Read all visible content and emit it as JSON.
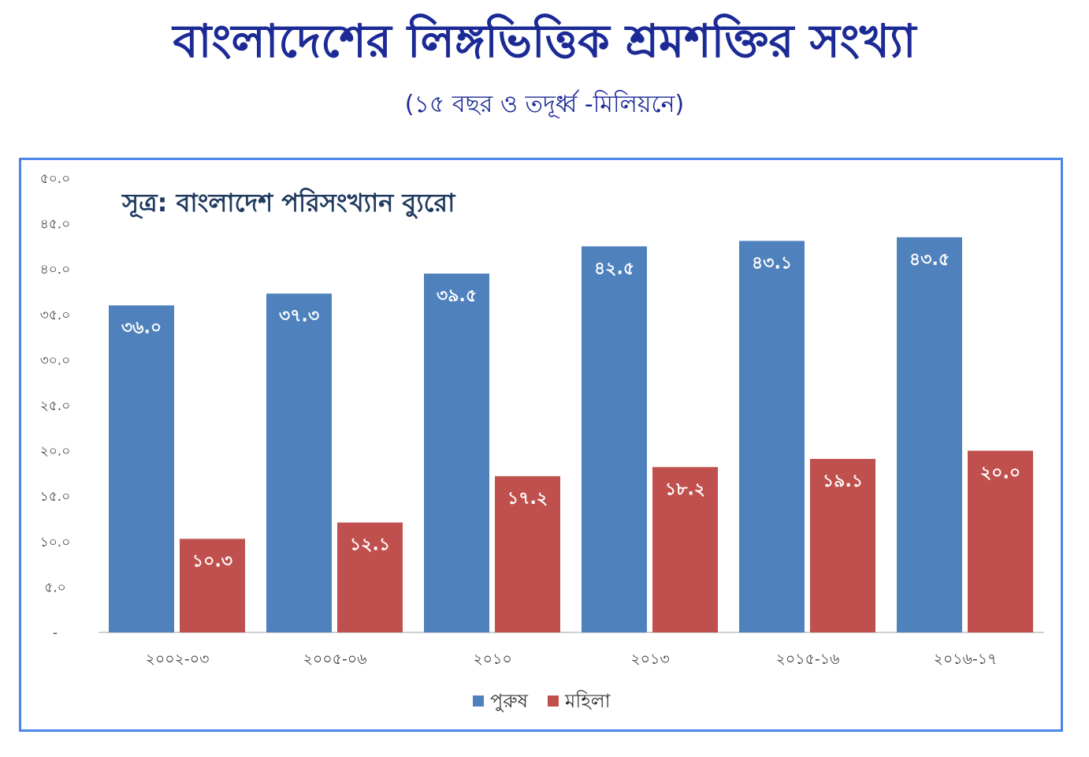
{
  "chart_data": {
    "type": "bar",
    "title": "বাংলাদেশের লিঙ্গভিত্তিক শ্রমশক্তির সংখ্যা",
    "subtitle": "(১৫ বছর ও তদূর্ধ্ব -মিলিয়নে)",
    "source": "সূত্র: বাংলাদেশ পরিসংখ্যান ব্যুরো",
    "categories": [
      "২০০২-০৩",
      "২০০৫-০৬",
      "২০১০",
      "২০১৩",
      "২০১৫-১৬",
      "২০১৬-১৭"
    ],
    "series": [
      {
        "name": "পুরুষ",
        "color": "#4f81bd",
        "values": [
          36.0,
          37.3,
          39.5,
          42.5,
          43.1,
          43.5
        ],
        "labels": [
          "৩৬.০",
          "৩৭.৩",
          "৩৯.৫",
          "৪২.৫",
          "৪৩.১",
          "৪৩.৫"
        ]
      },
      {
        "name": "মহিলা",
        "color": "#c0504d",
        "values": [
          10.3,
          12.1,
          17.2,
          18.2,
          19.1,
          20.0
        ],
        "labels": [
          "১০.৩",
          "১২.১",
          "১৭.২",
          "১৮.২",
          "১৯.১",
          "২০.০"
        ]
      }
    ],
    "yticks": [
      0,
      5,
      10,
      15,
      20,
      25,
      30,
      35,
      40,
      45,
      50
    ],
    "ytick_labels": [
      "-",
      "৫.০",
      "১০.০",
      "১৫.০",
      "২০.০",
      "২৫.০",
      "৩০.০",
      "৩৫.০",
      "৪০.০",
      "৪৫.০",
      "৫০.০"
    ],
    "ylim": [
      0,
      50
    ],
    "grid": false,
    "legend": "bottom-center",
    "xlabel": "",
    "ylabel": ""
  }
}
